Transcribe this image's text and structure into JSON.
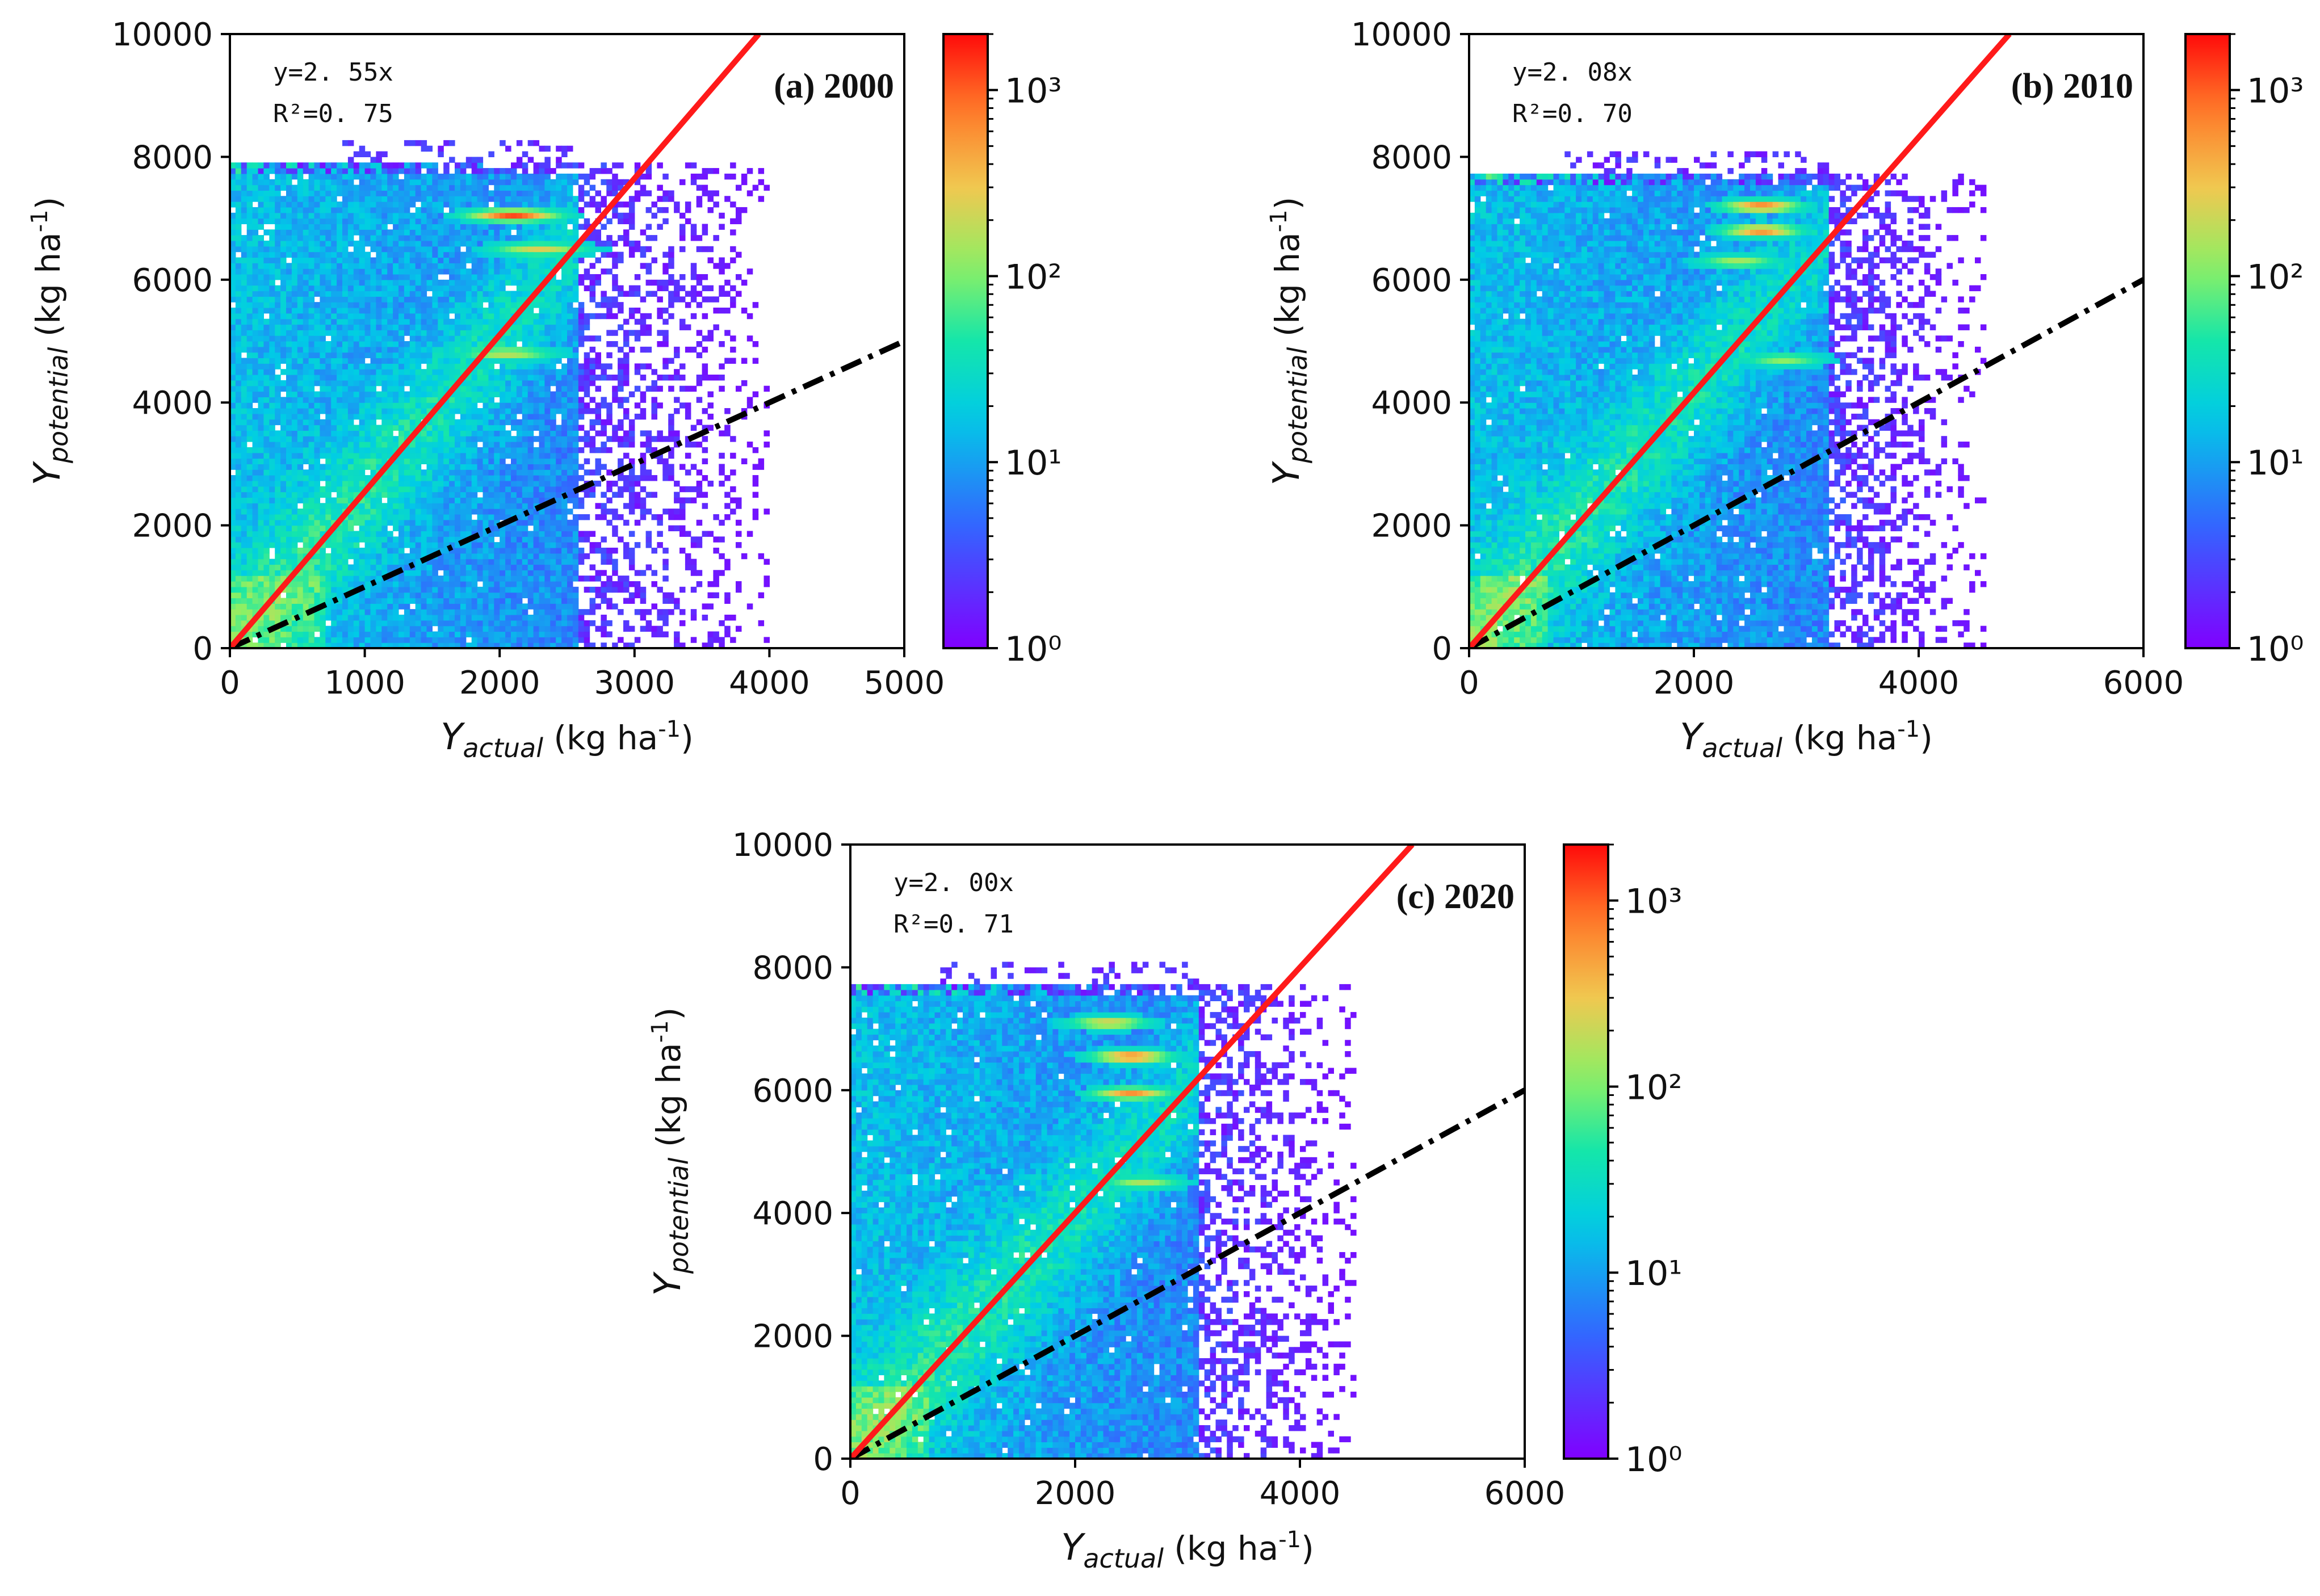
{
  "chart_data": [
    {
      "type": "heatmap",
      "title": "(a) 2000",
      "xlabel": "Y_actual (kg ha-1)",
      "xlabel_main": "Y",
      "xlabel_sub": "actual",
      "xlabel_unit": " (kg ha",
      "xlabel_exp": "-1",
      "xlabel_close": ")",
      "ylabel": "Y_potential (kg ha-1)",
      "ylabel_main": "Y",
      "ylabel_sub": "potential",
      "ylabel_unit": " (kg ha",
      "ylabel_exp": "-1",
      "ylabel_close": ")",
      "xlim": [
        0,
        5000
      ],
      "ylim": [
        0,
        10000
      ],
      "xticks": [
        0,
        1000,
        2000,
        3000,
        4000,
        5000
      ],
      "yticks": [
        0,
        2000,
        4000,
        6000,
        8000,
        10000
      ],
      "xtick_labels": [
        "0",
        "1000",
        "2000",
        "3000",
        "4000",
        "5000"
      ],
      "ytick_labels": [
        "0",
        "2000",
        "4000",
        "6000",
        "8000",
        "10000"
      ],
      "fit": {
        "slope": 2.55,
        "equation": "y=2. 55x",
        "r2_label": "R²=0. 75",
        "r2": 0.75,
        "color": "#ff1a1a"
      },
      "reference_line": {
        "slope": 1.0,
        "style": "dash-dot",
        "color": "#000000"
      },
      "plateau_y": 7700,
      "scatter_edge_x": 2600,
      "hotspots": [
        {
          "x": 2100,
          "y": 7050,
          "count": 1200
        },
        {
          "x": 2300,
          "y": 6500,
          "count": 250
        },
        {
          "x": 2050,
          "y": 4800,
          "count": 200
        }
      ],
      "colorbar": {
        "scale": "log",
        "min": 1,
        "max": 2000,
        "ticks": [
          "10⁰",
          "10¹",
          "10²",
          "10³"
        ]
      }
    },
    {
      "type": "heatmap",
      "title": "(b) 2010",
      "xlabel": "Y_actual (kg ha-1)",
      "xlabel_main": "Y",
      "xlabel_sub": "actual",
      "xlabel_unit": " (kg ha",
      "xlabel_exp": "-1",
      "xlabel_close": ")",
      "ylabel": "Y_potential (kg ha-1)",
      "ylabel_main": "Y",
      "ylabel_sub": "potential",
      "ylabel_unit": " (kg ha",
      "ylabel_exp": "-1",
      "ylabel_close": ")",
      "xlim": [
        0,
        6000
      ],
      "ylim": [
        0,
        10000
      ],
      "xticks": [
        0,
        2000,
        4000,
        6000
      ],
      "yticks": [
        0,
        2000,
        4000,
        6000,
        8000,
        10000
      ],
      "xtick_labels": [
        "0",
        "2000",
        "4000",
        "6000"
      ],
      "ytick_labels": [
        "0",
        "2000",
        "4000",
        "6000",
        "8000",
        "10000"
      ],
      "fit": {
        "slope": 2.08,
        "equation": "y=2. 08x",
        "r2_label": "R²=0. 70",
        "r2": 0.7,
        "color": "#ff1a1a"
      },
      "reference_line": {
        "slope": 1.0,
        "style": "dash-dot",
        "color": "#000000"
      },
      "plateau_y": 7500,
      "scatter_edge_x": 3200,
      "hotspots": [
        {
          "x": 2600,
          "y": 7200,
          "count": 800
        },
        {
          "x": 2600,
          "y": 6800,
          "count": 700
        },
        {
          "x": 2400,
          "y": 6300,
          "count": 150
        },
        {
          "x": 2800,
          "y": 4700,
          "count": 120
        }
      ],
      "colorbar": {
        "scale": "log",
        "min": 1,
        "max": 2000,
        "ticks": [
          "10⁰",
          "10¹",
          "10²",
          "10³"
        ]
      }
    },
    {
      "type": "heatmap",
      "title": "(c) 2020",
      "xlabel": "Y_actual (kg ha-1)",
      "xlabel_main": "Y",
      "xlabel_sub": "actual",
      "xlabel_unit": " (kg ha",
      "xlabel_exp": "-1",
      "xlabel_close": ")",
      "ylabel": "Y_potential (kg ha-1)",
      "ylabel_main": "Y",
      "ylabel_sub": "potential",
      "ylabel_unit": " (kg ha",
      "ylabel_exp": "-1",
      "ylabel_close": ")",
      "xlim": [
        0,
        6000
      ],
      "ylim": [
        0,
        10000
      ],
      "xticks": [
        0,
        2000,
        4000,
        6000
      ],
      "yticks": [
        0,
        2000,
        4000,
        6000,
        8000,
        10000
      ],
      "xtick_labels": [
        "0",
        "2000",
        "4000",
        "6000"
      ],
      "ytick_labels": [
        "0",
        "2000",
        "4000",
        "6000",
        "8000",
        "10000"
      ],
      "fit": {
        "slope": 2.0,
        "equation": "y=2. 00x",
        "r2_label": "R²=0. 71",
        "r2": 0.71,
        "color": "#ff1a1a"
      },
      "reference_line": {
        "slope": 1.0,
        "style": "dash-dot",
        "color": "#000000"
      },
      "plateau_y": 7500,
      "scatter_edge_x": 3100,
      "hotspots": [
        {
          "x": 2500,
          "y": 6550,
          "count": 900
        },
        {
          "x": 2500,
          "y": 5950,
          "count": 600
        },
        {
          "x": 2300,
          "y": 7100,
          "count": 300
        },
        {
          "x": 2600,
          "y": 4500,
          "count": 150
        }
      ],
      "colorbar": {
        "scale": "log",
        "min": 1,
        "max": 2000,
        "ticks": [
          "10⁰",
          "10¹",
          "10²",
          "10³"
        ]
      }
    }
  ]
}
